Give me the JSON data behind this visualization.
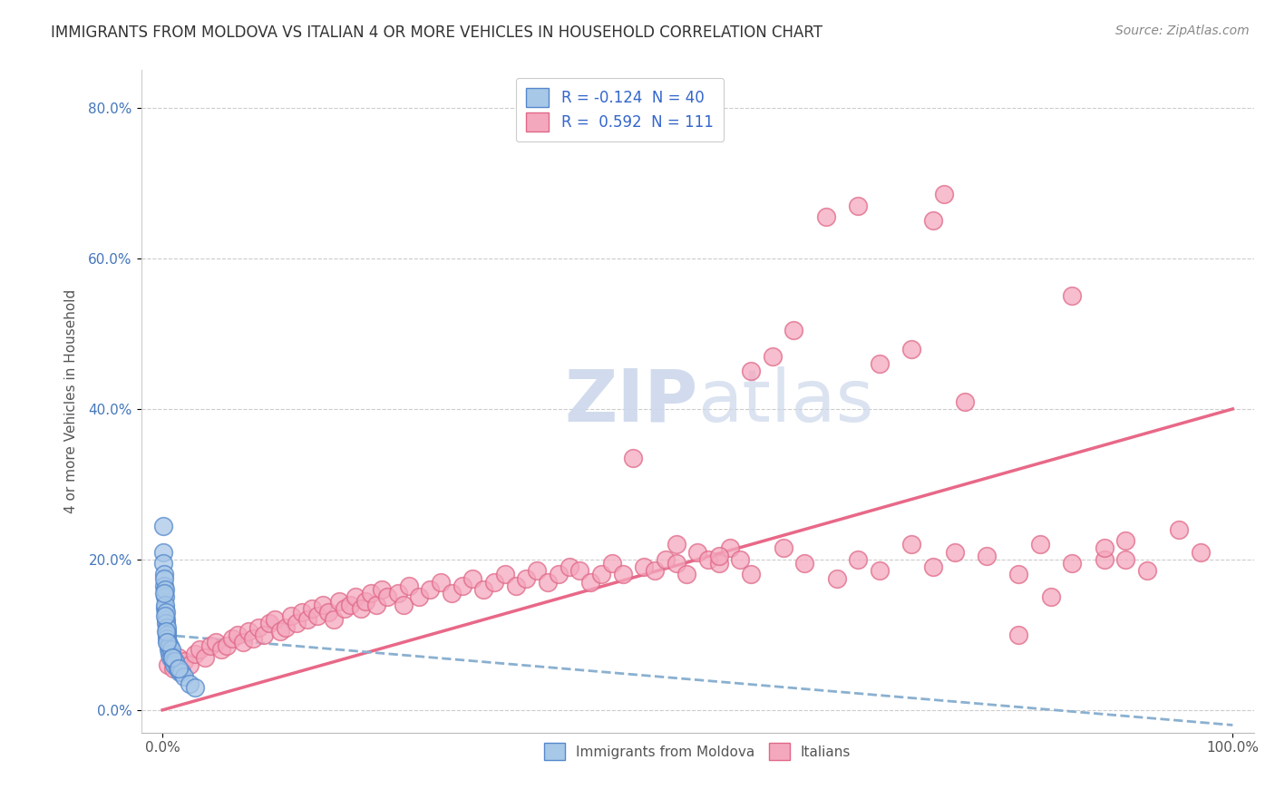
{
  "title": "IMMIGRANTS FROM MOLDOVA VS ITALIAN 4 OR MORE VEHICLES IN HOUSEHOLD CORRELATION CHART",
  "source": "Source: ZipAtlas.com",
  "ylabel": "4 or more Vehicles in Household",
  "color_moldova": "#a8c8e8",
  "color_italians": "#f4a8be",
  "color_moldova_edge": "#5588cc",
  "color_italians_edge": "#e06888",
  "trend_moldova_color": "#8ab0d0",
  "trend_italians_color": "#e86888",
  "legend1_label": "R = -0.124  N = 40",
  "legend2_label": "R =  0.592  N = 111",
  "legend_label_moldova": "Immigrants from Moldova",
  "legend_label_italians": "Italians",
  "watermark_color": "#ccd8ec",
  "moldova_x": [
    0.05,
    0.08,
    0.1,
    0.12,
    0.15,
    0.18,
    0.2,
    0.22,
    0.25,
    0.28,
    0.3,
    0.32,
    0.35,
    0.38,
    0.4,
    0.42,
    0.45,
    0.5,
    0.55,
    0.6,
    0.65,
    0.7,
    0.75,
    0.8,
    0.9,
    1.0,
    1.1,
    1.2,
    1.4,
    1.6,
    1.8,
    2.0,
    2.5,
    3.0,
    0.15,
    0.25,
    0.3,
    0.4,
    0.9,
    1.5
  ],
  "moldova_y": [
    24.5,
    21.0,
    19.5,
    18.0,
    16.5,
    17.5,
    15.0,
    16.0,
    13.5,
    14.0,
    12.0,
    13.0,
    11.5,
    10.5,
    11.0,
    10.0,
    9.5,
    9.0,
    8.5,
    8.0,
    8.5,
    7.5,
    7.0,
    8.0,
    7.0,
    6.5,
    6.0,
    6.5,
    5.5,
    5.0,
    5.0,
    4.5,
    3.5,
    3.0,
    15.5,
    12.5,
    10.5,
    9.0,
    7.0,
    5.5
  ],
  "italians_x": [
    0.5,
    1.0,
    1.5,
    2.0,
    2.5,
    3.0,
    3.5,
    4.0,
    4.5,
    5.0,
    5.5,
    6.0,
    6.5,
    7.0,
    7.5,
    8.0,
    8.5,
    9.0,
    9.5,
    10.0,
    10.5,
    11.0,
    11.5,
    12.0,
    12.5,
    13.0,
    13.5,
    14.0,
    14.5,
    15.0,
    15.5,
    16.0,
    16.5,
    17.0,
    17.5,
    18.0,
    18.5,
    19.0,
    19.5,
    20.0,
    20.5,
    21.0,
    22.0,
    22.5,
    23.0,
    24.0,
    25.0,
    26.0,
    27.0,
    28.0,
    29.0,
    30.0,
    31.0,
    32.0,
    33.0,
    34.0,
    35.0,
    36.0,
    37.0,
    38.0,
    39.0,
    40.0,
    41.0,
    42.0,
    43.0,
    44.0,
    45.0,
    46.0,
    47.0,
    48.0,
    49.0,
    50.0,
    51.0,
    52.0,
    53.0,
    54.0,
    55.0,
    57.0,
    59.0,
    62.0,
    65.0,
    67.0,
    70.0,
    72.0,
    73.0,
    75.0,
    80.0,
    83.0,
    85.0,
    88.0,
    90.0,
    92.0,
    95.0,
    97.0,
    48.0,
    52.0,
    55.0,
    58.0,
    60.0,
    63.0,
    65.0,
    67.0,
    70.0,
    72.0,
    74.0,
    77.0,
    80.0,
    82.0,
    85.0,
    88.0,
    90.0
  ],
  "italians_y": [
    6.0,
    5.5,
    7.0,
    6.5,
    6.0,
    7.5,
    8.0,
    7.0,
    8.5,
    9.0,
    8.0,
    8.5,
    9.5,
    10.0,
    9.0,
    10.5,
    9.5,
    11.0,
    10.0,
    11.5,
    12.0,
    10.5,
    11.0,
    12.5,
    11.5,
    13.0,
    12.0,
    13.5,
    12.5,
    14.0,
    13.0,
    12.0,
    14.5,
    13.5,
    14.0,
    15.0,
    13.5,
    14.5,
    15.5,
    14.0,
    16.0,
    15.0,
    15.5,
    14.0,
    16.5,
    15.0,
    16.0,
    17.0,
    15.5,
    16.5,
    17.5,
    16.0,
    17.0,
    18.0,
    16.5,
    17.5,
    18.5,
    17.0,
    18.0,
    19.0,
    18.5,
    17.0,
    18.0,
    19.5,
    18.0,
    33.5,
    19.0,
    18.5,
    20.0,
    19.5,
    18.0,
    21.0,
    20.0,
    19.5,
    21.5,
    20.0,
    45.0,
    47.0,
    50.5,
    65.5,
    67.0,
    46.0,
    48.0,
    65.0,
    68.5,
    41.0,
    10.0,
    15.0,
    55.0,
    20.0,
    22.5,
    18.5,
    24.0,
    21.0,
    22.0,
    20.5,
    18.0,
    21.5,
    19.5,
    17.5,
    20.0,
    18.5,
    22.0,
    19.0,
    21.0,
    20.5,
    18.0,
    22.0,
    19.5,
    21.5,
    20.0
  ]
}
